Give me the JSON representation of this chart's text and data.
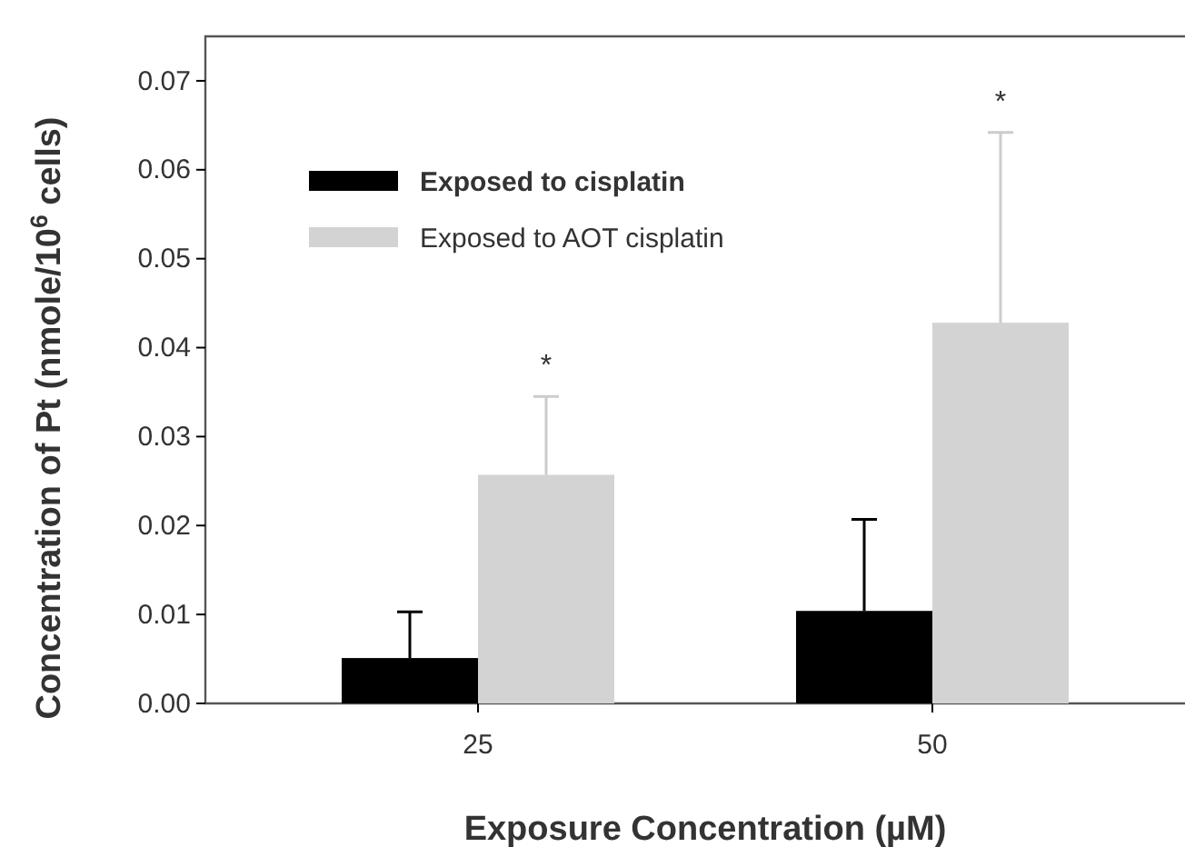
{
  "chart_data": {
    "type": "bar",
    "xlabel": "Exposure Concentration (µM)",
    "ylabel": "Concentration of Pt (nmole/10$^{6}$ cells)",
    "categories": [
      "25",
      "50"
    ],
    "series": [
      {
        "name": "Exposed to cisplatin",
        "color": "#000000",
        "values": [
          0.0051,
          0.0104
        ],
        "errors": [
          [
            0.0051,
            0.0103
          ],
          [
            0.0104,
            0.0207
          ]
        ]
      },
      {
        "name": "Exposed to AOT cisplatin",
        "color": "#d3d3d3",
        "values": [
          0.0257,
          0.0428
        ],
        "errors": [
          [
            0.0257,
            0.0345
          ],
          [
            0.0428,
            0.0642
          ]
        ]
      }
    ],
    "ylim": [
      0,
      0.075
    ],
    "yticks": [
      {
        "value": 0,
        "label": "0.00"
      },
      0.01,
      0.02,
      0.03,
      0.04,
      0.05,
      0.06,
      0.07
    ],
    "legend": "top left",
    "annotations": [
      "*",
      "*"
    ]
  }
}
